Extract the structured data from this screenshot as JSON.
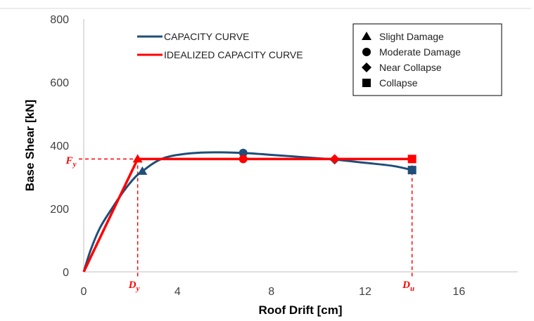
{
  "chart_data": {
    "type": "line",
    "title": "",
    "xlabel": "Roof Drift [cm]",
    "ylabel": "Base Shear [kN]",
    "xlim": [
      0,
      18
    ],
    "ylim": [
      0,
      800
    ],
    "x_ticks": [
      0,
      4,
      8,
      12,
      16
    ],
    "y_ticks": [
      0,
      200,
      400,
      600,
      800
    ],
    "grid": false,
    "series": [
      {
        "name": "CAPACITY CURVE",
        "color": "#1f4e79",
        "x": [
          0,
          0.3,
          0.7,
          1.2,
          1.7,
          2.2,
          2.5,
          3.0,
          3.5,
          4.2,
          5.0,
          5.8,
          6.8,
          8.0,
          9.5,
          10.7,
          12.0,
          13.2,
          14.0
        ],
        "y": [
          0,
          70,
          140,
          200,
          255,
          300,
          318,
          345,
          362,
          372,
          377,
          378,
          376,
          370,
          362,
          355,
          345,
          335,
          322
        ]
      },
      {
        "name": "IDEALIZED CAPACITY CURVE",
        "color": "#ff0000",
        "x": [
          0,
          2.3,
          14.0
        ],
        "y": [
          0,
          357,
          357
        ]
      }
    ],
    "damage_states": {
      "legend": [
        {
          "label": "Slight Damage",
          "marker": "triangle"
        },
        {
          "label": "Moderate Damage",
          "marker": "circle"
        },
        {
          "label": "Near Collapse",
          "marker": "diamond"
        },
        {
          "label": "Collapse",
          "marker": "square"
        }
      ],
      "capacity_points": [
        {
          "marker": "triangle",
          "x": 2.5,
          "y": 318
        },
        {
          "marker": "circle",
          "x": 6.8,
          "y": 376
        },
        {
          "marker": "diamond",
          "x": 10.7,
          "y": 355
        },
        {
          "marker": "square",
          "x": 14.0,
          "y": 322
        }
      ],
      "idealized_points": [
        {
          "marker": "triangle",
          "x": 2.3,
          "y": 357
        },
        {
          "marker": "circle",
          "x": 6.8,
          "y": 357
        },
        {
          "marker": "diamond",
          "x": 10.7,
          "y": 357
        },
        {
          "marker": "square",
          "x": 14.0,
          "y": 357
        }
      ]
    },
    "reference_lines": {
      "Fy": {
        "label": "F",
        "sub": "y",
        "value": 357
      },
      "Dy": {
        "label": "D",
        "sub": "y",
        "value": 2.3
      },
      "Du": {
        "label": "D",
        "sub": "u",
        "value": 14.0
      }
    },
    "legend_position": "top-left (series), top-right (damage states)"
  }
}
